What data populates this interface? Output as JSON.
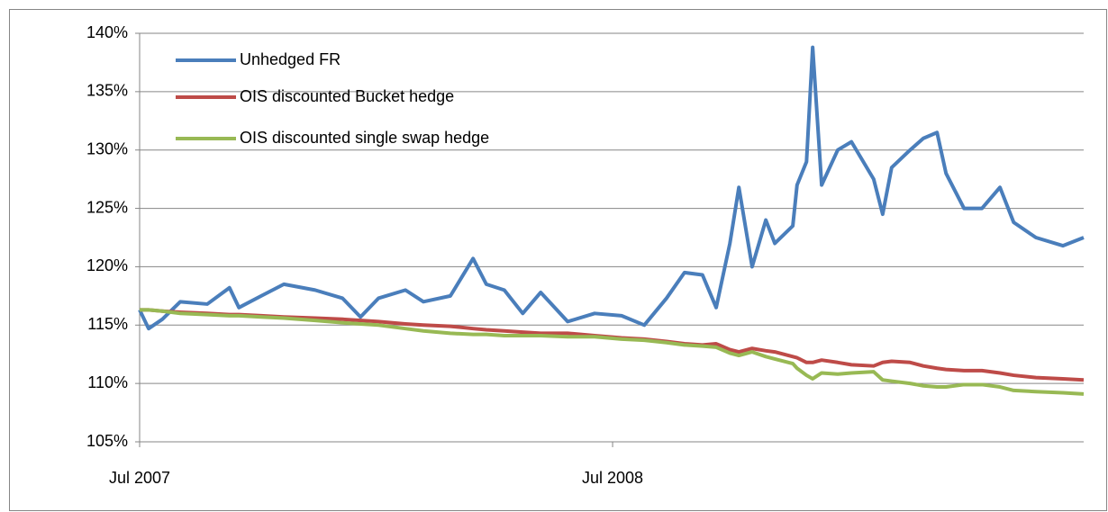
{
  "chart_data": {
    "type": "line",
    "x": [
      2007.5,
      2007.519,
      2007.548,
      2007.586,
      2007.643,
      2007.69,
      2007.71,
      2007.757,
      2007.805,
      2007.871,
      2007.929,
      2007.967,
      2008.005,
      2008.062,
      2008.1,
      2008.157,
      2008.205,
      2008.233,
      2008.271,
      2008.31,
      2008.348,
      2008.405,
      2008.462,
      2008.519,
      2008.567,
      2008.614,
      2008.652,
      2008.69,
      2008.719,
      2008.748,
      2008.767,
      2008.795,
      2008.824,
      2008.843,
      2008.881,
      2008.89,
      2008.91,
      2008.923,
      2008.942,
      2008.976,
      2009.005,
      2009.052,
      2009.071,
      2009.09,
      2009.129,
      2009.157,
      2009.186,
      2009.205,
      2009.243,
      2009.281,
      2009.319,
      2009.348,
      2009.395,
      2009.452,
      2009.496
    ],
    "series": [
      {
        "name": "Unhedged FR",
        "color": "#4a7ebb",
        "values": [
          116.3,
          114.7,
          115.5,
          117.0,
          116.8,
          118.2,
          116.5,
          117.5,
          118.5,
          118.0,
          117.3,
          115.7,
          117.3,
          118.0,
          117.0,
          117.5,
          120.7,
          118.5,
          118.0,
          116.0,
          117.8,
          115.3,
          116.0,
          115.8,
          115.0,
          117.3,
          119.5,
          119.3,
          116.5,
          122.0,
          126.8,
          120.0,
          124.0,
          122.0,
          123.5,
          127.0,
          129.0,
          138.8,
          127.0,
          130.0,
          130.7,
          127.5,
          124.5,
          128.5,
          130.0,
          131.0,
          131.5,
          128.0,
          125.0,
          125.0,
          126.8,
          123.8,
          122.5,
          121.8,
          122.5
        ]
      },
      {
        "name": "OIS discounted Bucket hedge",
        "color": "#be4b48",
        "values": [
          116.3,
          116.3,
          116.2,
          116.1,
          116.0,
          115.9,
          115.9,
          115.8,
          115.7,
          115.6,
          115.5,
          115.4,
          115.3,
          115.1,
          115.0,
          114.9,
          114.7,
          114.6,
          114.5,
          114.4,
          114.3,
          114.3,
          114.1,
          113.9,
          113.8,
          113.6,
          113.4,
          113.3,
          113.4,
          112.9,
          112.7,
          113.0,
          112.8,
          112.7,
          112.3,
          112.2,
          111.8,
          111.8,
          112.0,
          111.8,
          111.6,
          111.5,
          111.8,
          111.9,
          111.8,
          111.5,
          111.3,
          111.2,
          111.1,
          111.1,
          110.9,
          110.7,
          110.5,
          110.4,
          110.3
        ]
      },
      {
        "name": "OIS discounted single swap hedge",
        "color": "#98b954",
        "values": [
          116.3,
          116.3,
          116.2,
          116.0,
          115.9,
          115.8,
          115.8,
          115.7,
          115.6,
          115.4,
          115.2,
          115.1,
          115.0,
          114.7,
          114.5,
          114.3,
          114.2,
          114.2,
          114.1,
          114.1,
          114.1,
          114.0,
          114.0,
          113.8,
          113.7,
          113.5,
          113.3,
          113.2,
          113.1,
          112.6,
          112.4,
          112.7,
          112.3,
          112.1,
          111.7,
          111.3,
          110.7,
          110.4,
          110.9,
          110.8,
          110.9,
          111.0,
          110.3,
          110.2,
          110.0,
          109.8,
          109.7,
          109.7,
          109.9,
          109.9,
          109.7,
          109.4,
          109.3,
          109.2,
          109.1
        ]
      }
    ],
    "xlim": [
      2007.5,
      2009.496
    ],
    "xticks": [
      {
        "value": 2007.5,
        "label": "Jul 2007"
      },
      {
        "value": 2008.5,
        "label": "Jul 2008"
      }
    ],
    "ylim": [
      105,
      140
    ],
    "yticks": [
      {
        "value": 105,
        "label": "105%"
      },
      {
        "value": 110,
        "label": "110%"
      },
      {
        "value": 115,
        "label": "115%"
      },
      {
        "value": 120,
        "label": "120%"
      },
      {
        "value": 125,
        "label": "125%"
      },
      {
        "value": 130,
        "label": "130%"
      },
      {
        "value": 135,
        "label": "135%"
      },
      {
        "value": 140,
        "label": "140%"
      }
    ],
    "grid": true,
    "legend": "upper-left"
  }
}
